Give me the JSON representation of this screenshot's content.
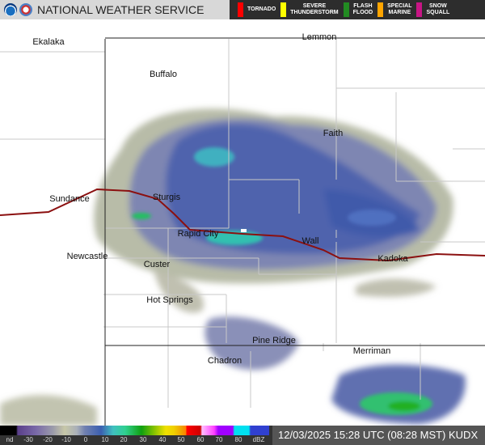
{
  "header": {
    "title": "NATIONAL WEATHER SERVICE",
    "logos": [
      "noaa-logo",
      "nws-logo"
    ]
  },
  "warnings": [
    {
      "label": "TORNADO",
      "color": "#ff0000"
    },
    {
      "label": "SEVERE\nTHUNDERSTORM",
      "color": "#ffff00"
    },
    {
      "label": "FLASH\nFLOOD",
      "color": "#228b22"
    },
    {
      "label": "SPECIAL\nMARINE",
      "color": "#ffa500"
    },
    {
      "label": "SNOW\nSQUALL",
      "color": "#c71585"
    }
  ],
  "cities": [
    "Ekalaka",
    "Lemmon",
    "Buffalo",
    "Faith",
    "Sundance",
    "Sturgis",
    "Rapid City",
    "Wall",
    "Newcastle",
    "Custer",
    "Kadoka",
    "Hot Springs",
    "Pine Ridge",
    "Chadron",
    "Merriman"
  ],
  "colorbar": {
    "ticks": [
      "nd",
      "-30",
      "-20",
      "-10",
      "0",
      "10",
      "20",
      "30",
      "40",
      "50",
      "60",
      "70",
      "80",
      "dBZ"
    ]
  },
  "timestamp": "12/03/2025 15:28 UTC (08:28 MST) KUDX"
}
